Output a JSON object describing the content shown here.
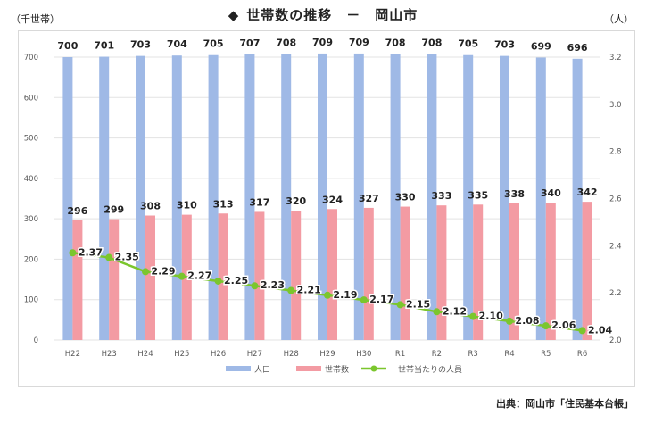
{
  "header": {
    "title_marker": "◆",
    "title": "世帯数の推移　－　岡山市",
    "left_unit": "（千世帯）",
    "right_unit": "（人）"
  },
  "source": "出典：岡山市「住民基本台帳」",
  "colors": {
    "population": "#9fb9e6",
    "households": "#f39ba3",
    "per_household": "#7bc62d",
    "grid": "#e3e3e3",
    "axis_text": "#595959"
  },
  "chart_data": {
    "type": "bar",
    "title": "世帯数の推移　－　岡山市",
    "categories": [
      "H22",
      "H23",
      "H24",
      "H25",
      "H26",
      "H27",
      "H28",
      "H29",
      "H30",
      "R1",
      "R2",
      "R3",
      "R4",
      "R5",
      "R6"
    ],
    "series": [
      {
        "name": "人口",
        "axis": "left",
        "type": "bar",
        "values": [
          700,
          701,
          703,
          704,
          705,
          707,
          708,
          709,
          709,
          708,
          708,
          705,
          703,
          699,
          696
        ]
      },
      {
        "name": "世帯数",
        "axis": "left",
        "type": "bar",
        "values": [
          296,
          299,
          308,
          310,
          313,
          317,
          320,
          324,
          327,
          330,
          333,
          335,
          338,
          340,
          342
        ]
      },
      {
        "name": "一世帯当たりの人員",
        "axis": "right",
        "type": "line",
        "values": [
          2.37,
          2.35,
          2.29,
          2.27,
          2.25,
          2.23,
          2.21,
          2.19,
          2.17,
          2.15,
          2.12,
          2.1,
          2.08,
          2.06,
          2.04
        ]
      }
    ],
    "left_axis": {
      "label": "（千世帯）",
      "ylim": [
        0,
        700
      ],
      "ticks": [
        0,
        100,
        200,
        300,
        400,
        500,
        600,
        700
      ]
    },
    "right_axis": {
      "label": "（人）",
      "ylim": [
        2.0,
        3.2
      ],
      "ticks": [
        "2.0",
        "2.2",
        "2.4",
        "2.6",
        "2.8",
        "3.0",
        "3.2"
      ]
    },
    "legend": [
      "人口",
      "世帯数",
      "一世帯当たりの人員"
    ],
    "legend_position": "bottom"
  }
}
